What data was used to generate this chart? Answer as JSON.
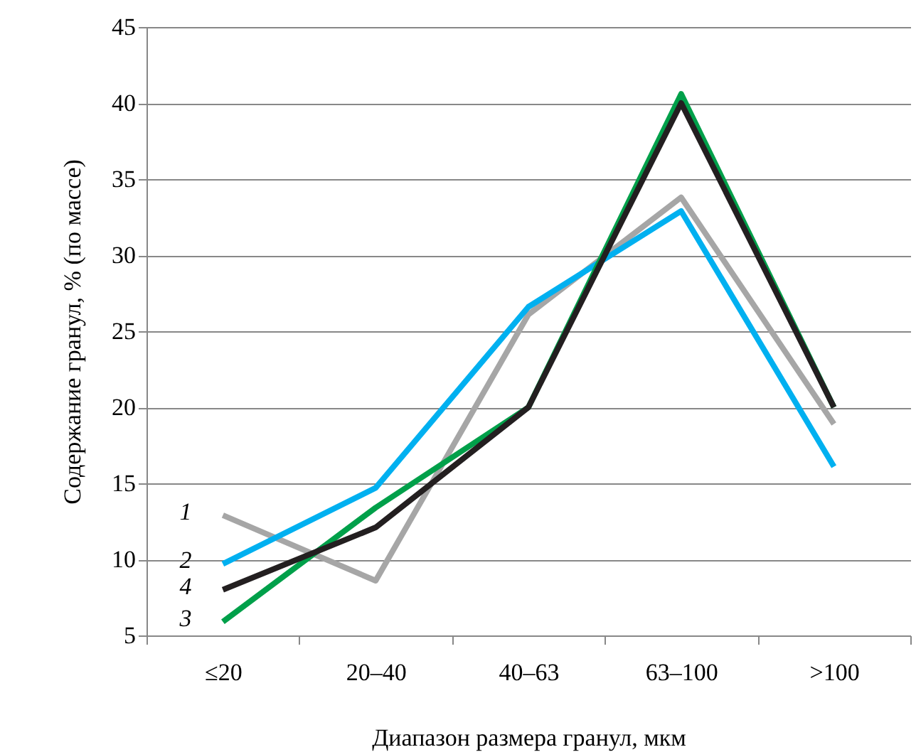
{
  "chart_data": {
    "type": "line",
    "xlabel": "Диапазон размера гранул, мкм",
    "ylabel": "Содержание гранул, %  (по массе)",
    "categories": [
      "≤20",
      "20–40",
      "40–63",
      "63–100",
      ">100"
    ],
    "series": [
      {
        "name": "1",
        "color": "#a6a6a6",
        "values": [
          12.9,
          8.6,
          26.1,
          33.8,
          18.9
        ]
      },
      {
        "name": "2",
        "color": "#00b0f0",
        "values": [
          9.7,
          14.7,
          26.6,
          32.9,
          16.1
        ]
      },
      {
        "name": "3",
        "color": "#00a04a",
        "values": [
          5.9,
          13.4,
          20,
          40.6,
          20
        ]
      },
      {
        "name": "4",
        "color": "#231f20",
        "values": [
          8.0,
          12.1,
          20,
          40.0,
          20
        ]
      }
    ],
    "ylim": [
      5,
      45
    ],
    "yticks": [
      5,
      10,
      15,
      20,
      25,
      30,
      35,
      40,
      45
    ],
    "grid": "y",
    "legend": false,
    "marker": "none",
    "line_style": "solid"
  }
}
